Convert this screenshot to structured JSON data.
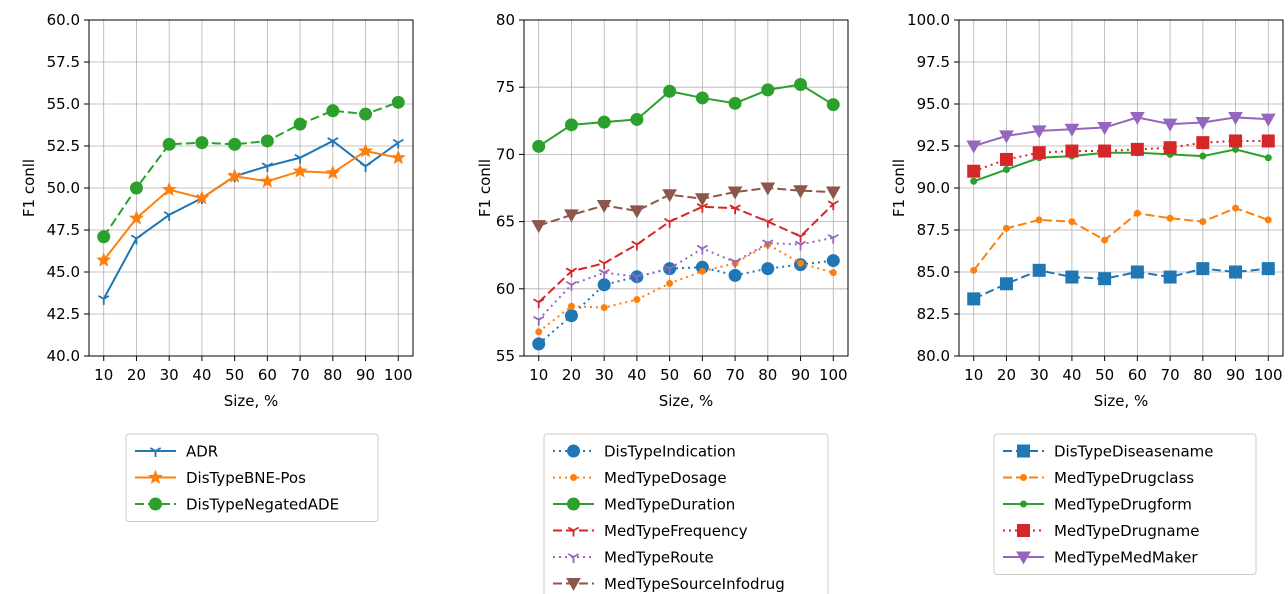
{
  "chart_data": [
    {
      "type": "line",
      "xlabel": "Size, %",
      "ylabel": "F1 conll",
      "x": [
        10,
        20,
        30,
        40,
        50,
        60,
        70,
        80,
        90,
        100
      ],
      "xticks": [
        "10",
        "20",
        "30",
        "40",
        "50",
        "60",
        "70",
        "80",
        "90",
        "100"
      ],
      "ylim": [
        40.0,
        60.0
      ],
      "yticks": [
        "40.0",
        "42.5",
        "45.0",
        "47.5",
        "50.0",
        "52.5",
        "55.0",
        "57.5",
        "60.0"
      ],
      "grid": true,
      "legend_position": "below",
      "series": [
        {
          "name": "ADR",
          "color": "#1f77b4",
          "linestyle": "solid",
          "marker": "tri-down",
          "values": [
            43.4,
            47.0,
            48.4,
            49.4,
            50.7,
            51.3,
            51.8,
            52.8,
            51.3,
            52.7
          ]
        },
        {
          "name": "DisTypeBNE-Pos",
          "color": "#ff7f0e",
          "linestyle": "solid",
          "marker": "star",
          "values": [
            45.7,
            48.2,
            49.9,
            49.4,
            50.7,
            50.4,
            51.0,
            50.9,
            52.2,
            51.8
          ]
        },
        {
          "name": "DisTypeNegatedADE",
          "color": "#2ca02c",
          "linestyle": "dashed",
          "marker": "circle",
          "values": [
            47.1,
            50.0,
            52.6,
            52.7,
            52.6,
            52.8,
            53.8,
            54.6,
            54.4,
            55.1
          ]
        }
      ]
    },
    {
      "type": "line",
      "xlabel": "Size, %",
      "ylabel": "F1 conll",
      "x": [
        10,
        20,
        30,
        40,
        50,
        60,
        70,
        80,
        90,
        100
      ],
      "xticks": [
        "10",
        "20",
        "30",
        "40",
        "50",
        "60",
        "70",
        "80",
        "90",
        "100"
      ],
      "ylim": [
        55,
        80
      ],
      "yticks": [
        "55",
        "60",
        "65",
        "70",
        "75",
        "80"
      ],
      "grid": true,
      "legend_position": "below",
      "series": [
        {
          "name": "DisTypeIndication",
          "color": "#1f77b4",
          "linestyle": "dotted",
          "marker": "circle",
          "values": [
            55.9,
            58.0,
            60.3,
            60.9,
            61.5,
            61.6,
            61.0,
            61.5,
            61.8,
            62.1
          ]
        },
        {
          "name": "MedTypeDosage",
          "color": "#ff7f0e",
          "linestyle": "dotted",
          "marker": "point",
          "values": [
            56.8,
            58.7,
            58.6,
            59.2,
            60.4,
            61.3,
            61.9,
            63.3,
            61.9,
            61.2
          ]
        },
        {
          "name": "MedTypeDuration",
          "color": "#2ca02c",
          "linestyle": "solid",
          "marker": "circle",
          "values": [
            70.6,
            72.2,
            72.4,
            72.6,
            74.7,
            74.2,
            73.8,
            74.8,
            75.2,
            73.7
          ]
        },
        {
          "name": "MedTypeFrequency",
          "color": "#d62728",
          "linestyle": "dashed",
          "marker": "tri-down",
          "values": [
            59.0,
            61.3,
            61.9,
            63.3,
            65.0,
            66.1,
            66.0,
            65.0,
            63.9,
            66.3
          ]
        },
        {
          "name": "MedTypeRoute",
          "color": "#9467bd",
          "linestyle": "dotted",
          "marker": "tri-down",
          "values": [
            57.7,
            60.3,
            61.2,
            60.9,
            61.5,
            63.0,
            62.0,
            63.4,
            63.3,
            63.8
          ]
        },
        {
          "name": "MedTypeSourceInfodrug",
          "color": "#8c564b",
          "linestyle": "dashed",
          "marker": "triangle-down",
          "values": [
            64.7,
            65.5,
            66.2,
            65.8,
            67.0,
            66.7,
            67.2,
            67.5,
            67.3,
            67.2
          ]
        }
      ]
    },
    {
      "type": "line",
      "xlabel": "Size, %",
      "ylabel": "F1 conll",
      "x": [
        10,
        20,
        30,
        40,
        50,
        60,
        70,
        80,
        90,
        100
      ],
      "xticks": [
        "10",
        "20",
        "30",
        "40",
        "50",
        "60",
        "70",
        "80",
        "90",
        "100"
      ],
      "ylim": [
        80.0,
        100.0
      ],
      "yticks": [
        "80.0",
        "82.5",
        "85.0",
        "87.5",
        "90.0",
        "92.5",
        "95.0",
        "97.5",
        "100.0"
      ],
      "grid": true,
      "legend_position": "below",
      "series": [
        {
          "name": "DisTypeDiseasename",
          "color": "#1f77b4",
          "linestyle": "dashed",
          "marker": "square",
          "values": [
            83.4,
            84.3,
            85.1,
            84.7,
            84.6,
            85.0,
            84.7,
            85.2,
            85.0,
            85.2
          ]
        },
        {
          "name": "MedTypeDrugclass",
          "color": "#ff7f0e",
          "linestyle": "dashed",
          "marker": "point",
          "values": [
            85.1,
            87.6,
            88.1,
            88.0,
            86.9,
            88.5,
            88.2,
            88.0,
            88.8,
            88.1
          ]
        },
        {
          "name": "MedTypeDrugform",
          "color": "#2ca02c",
          "linestyle": "solid",
          "marker": "point",
          "values": [
            90.4,
            91.1,
            91.8,
            91.9,
            92.1,
            92.1,
            92.0,
            91.9,
            92.3,
            91.8
          ]
        },
        {
          "name": "MedTypeDrugname",
          "color": "#d62728",
          "linestyle": "dotted",
          "marker": "square",
          "values": [
            91.0,
            91.7,
            92.1,
            92.2,
            92.2,
            92.3,
            92.4,
            92.7,
            92.8,
            92.8
          ]
        },
        {
          "name": "MedTypeMedMaker",
          "color": "#9467bd",
          "linestyle": "solid",
          "marker": "triangle-down",
          "values": [
            92.5,
            93.1,
            93.4,
            93.5,
            93.6,
            94.2,
            93.8,
            93.9,
            94.2,
            94.1
          ]
        }
      ]
    }
  ]
}
